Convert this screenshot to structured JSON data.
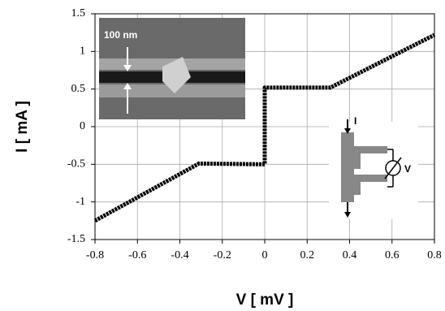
{
  "chart_data": {
    "type": "line",
    "x_label": "V  [ mV ]",
    "y_label": "I  [ mA ]",
    "x": [
      -0.8,
      -0.31,
      0,
      0,
      0.31,
      0.8
    ],
    "values": [
      -1.25,
      -0.49,
      -0.5,
      0.52,
      0.52,
      1.22
    ],
    "color": "#000000",
    "xlim": [
      -0.8,
      0.8
    ],
    "xticks": [
      -0.8,
      -0.6,
      -0.4,
      -0.2,
      0,
      0.2,
      0.4,
      0.6,
      0.8
    ],
    "ylim": [
      -1.5,
      1.5
    ],
    "yticks": [
      -1.5,
      -1,
      -0.5,
      0,
      0.5,
      1,
      1.5
    ],
    "grid": true,
    "annotations": {
      "scale_bar": "100 nm",
      "current": "I",
      "voltage": "V"
    }
  }
}
